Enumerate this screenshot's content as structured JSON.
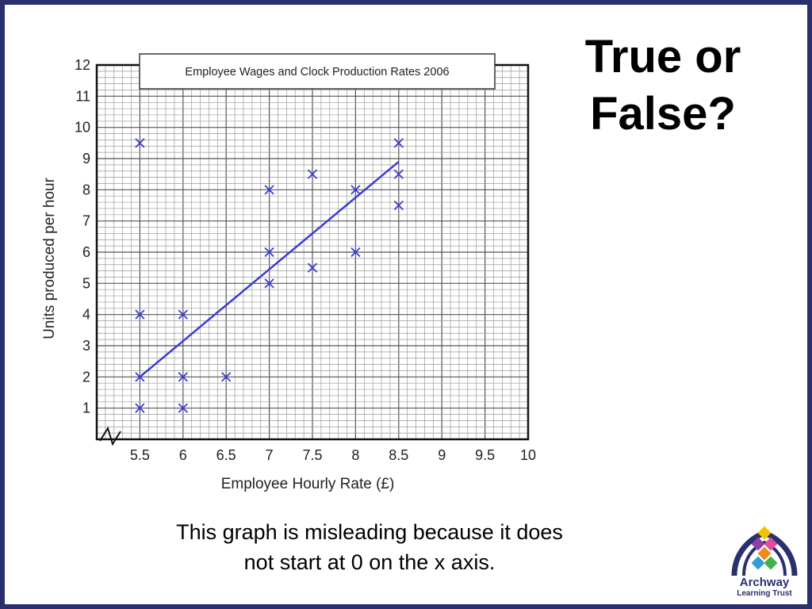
{
  "slide": {
    "heading_line1": "True or",
    "heading_line2": "False?",
    "caption_line1": "This graph is misleading because it does",
    "caption_line2": "not start at 0 on the x axis.",
    "logo": {
      "name": "Archway",
      "sub": "Learning Trust"
    }
  },
  "chart_data": {
    "type": "scatter",
    "title": "Employee Wages and Clock Production Rates 2006",
    "xlabel": "Employee Hourly Rate (£)",
    "ylabel": "Units produced per hour",
    "xlim": [
      5,
      10
    ],
    "ylim": [
      0,
      12
    ],
    "x_axis_break": true,
    "grid": true,
    "xticks": [
      "5.5",
      "6",
      "6.5",
      "7",
      "7.5",
      "8",
      "8.5",
      "9",
      "9.5",
      "10"
    ],
    "yticks": [
      "1",
      "2",
      "3",
      "4",
      "5",
      "6",
      "7",
      "8",
      "9",
      "10",
      "11",
      "12"
    ],
    "points": [
      {
        "x": 5.5,
        "y": 9.5
      },
      {
        "x": 5.5,
        "y": 4
      },
      {
        "x": 5.5,
        "y": 2
      },
      {
        "x": 5.5,
        "y": 1
      },
      {
        "x": 6,
        "y": 4
      },
      {
        "x": 6,
        "y": 2
      },
      {
        "x": 6,
        "y": 1
      },
      {
        "x": 6.5,
        "y": 2
      },
      {
        "x": 7,
        "y": 8
      },
      {
        "x": 7,
        "y": 6
      },
      {
        "x": 7,
        "y": 5
      },
      {
        "x": 7.5,
        "y": 8.5
      },
      {
        "x": 7.5,
        "y": 5.5
      },
      {
        "x": 8,
        "y": 8
      },
      {
        "x": 8,
        "y": 6
      },
      {
        "x": 8.5,
        "y": 9.5
      },
      {
        "x": 8.5,
        "y": 8.5
      },
      {
        "x": 8.5,
        "y": 7.5
      }
    ],
    "trendline": {
      "x1": 5.5,
      "y1": 2,
      "x2": 8.5,
      "y2": 8.9
    },
    "marker_color": "#3b3bd6"
  }
}
